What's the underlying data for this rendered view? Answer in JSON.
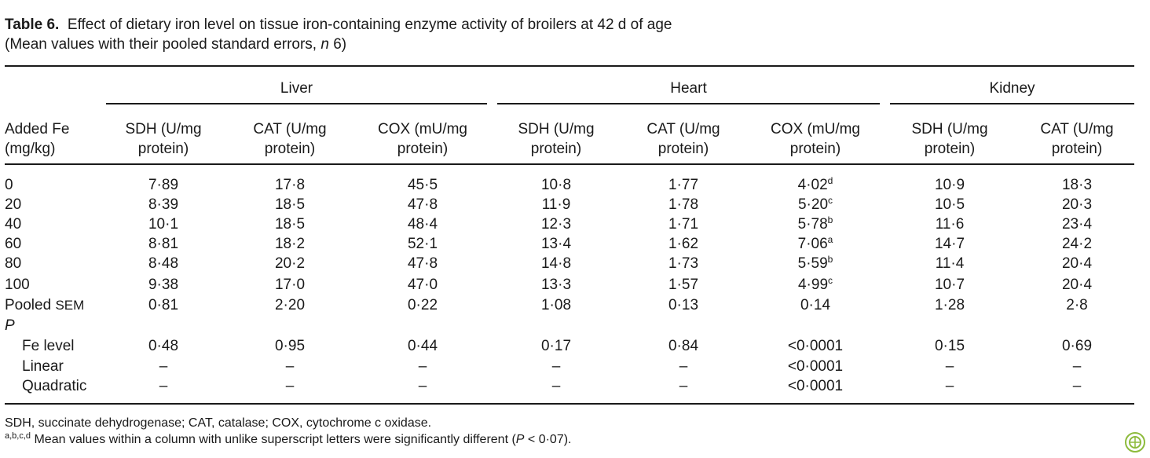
{
  "caption": {
    "label": "Table 6.",
    "title": "Effect of dietary iron level on tissue iron-containing enzyme activity of broilers at 42 d of age",
    "subtitle_pre": "(Mean values with their pooled standard errors, ",
    "subtitle_n": "n",
    "subtitle_post": " 6)"
  },
  "groups": [
    "Liver",
    "Heart",
    "Kidney"
  ],
  "headers": {
    "first_line1": "Added Fe",
    "first_line2": "(mg/kg)",
    "cols": [
      {
        "l1": "SDH (U/mg",
        "l2": "protein)"
      },
      {
        "l1": "CAT (U/mg",
        "l2": "protein)"
      },
      {
        "l1": "COX (mU/mg",
        "l2": "protein)"
      },
      {
        "l1": "SDH (U/mg",
        "l2": "protein)"
      },
      {
        "l1": "CAT (U/mg",
        "l2": "protein)"
      },
      {
        "l1": "COX (mU/mg",
        "l2": "protein)"
      },
      {
        "l1": "SDH (U/mg",
        "l2": "protein)"
      },
      {
        "l1": "CAT (U/mg",
        "l2": "protein)"
      }
    ]
  },
  "rows": [
    {
      "label": "0",
      "vals": [
        "7·89",
        "17·8",
        "45·5",
        "10·8",
        "1·77",
        "4·02",
        "10·9",
        "18·3"
      ],
      "sup": "d"
    },
    {
      "label": "20",
      "vals": [
        "8·39",
        "18·5",
        "47·8",
        "11·9",
        "1·78",
        "5·20",
        "10·5",
        "20·3"
      ],
      "sup": "c"
    },
    {
      "label": "40",
      "vals": [
        "10·1",
        "18·5",
        "48·4",
        "12·3",
        "1·71",
        "5·78",
        "11·6",
        "23·4"
      ],
      "sup": "b"
    },
    {
      "label": "60",
      "vals": [
        "8·81",
        "18·2",
        "52·1",
        "13·4",
        "1·62",
        "7·06",
        "14·7",
        "24·2"
      ],
      "sup": "a"
    },
    {
      "label": "80",
      "vals": [
        "8·48",
        "20·2",
        "47·8",
        "14·8",
        "1·73",
        "5·59",
        "11·4",
        "20·4"
      ],
      "sup": "b"
    },
    {
      "label": "100",
      "vals": [
        "9·38",
        "17·0",
        "47·0",
        "13·3",
        "1·57",
        "4·99",
        "10·7",
        "20·4"
      ],
      "sup": "c"
    }
  ],
  "sem": {
    "label": "Pooled",
    "label_sc": "SEM",
    "vals": [
      "0·81",
      "2·20",
      "0·22",
      "1·08",
      "0·13",
      "0·14",
      "1·28",
      "2·8"
    ]
  },
  "p_label": "P",
  "p_rows": [
    {
      "label": "Fe level",
      "vals": [
        "0·48",
        "0·95",
        "0·44",
        "0·17",
        "0·84",
        "<0·0001",
        "0·15",
        "0·69"
      ]
    },
    {
      "label": "Linear",
      "vals": [
        "–",
        "–",
        "–",
        "–",
        "–",
        "<0·0001",
        "–",
        "–"
      ]
    },
    {
      "label": "Quadratic",
      "vals": [
        "–",
        "–",
        "–",
        "–",
        "–",
        "<0·0001",
        "–",
        "–"
      ]
    }
  ],
  "footnotes": {
    "abbr": "SDH, succinate dehydrogenase; CAT, catalase; COX, cytochrome c oxidase.",
    "sig_sup": "a,b,c,d",
    "sig_pre": " Mean values within a column with unlike superscript letters were significantly different (",
    "sig_p": "P",
    "sig_post": " < 0·07)."
  },
  "logo_icon": "publisher-seal-icon"
}
